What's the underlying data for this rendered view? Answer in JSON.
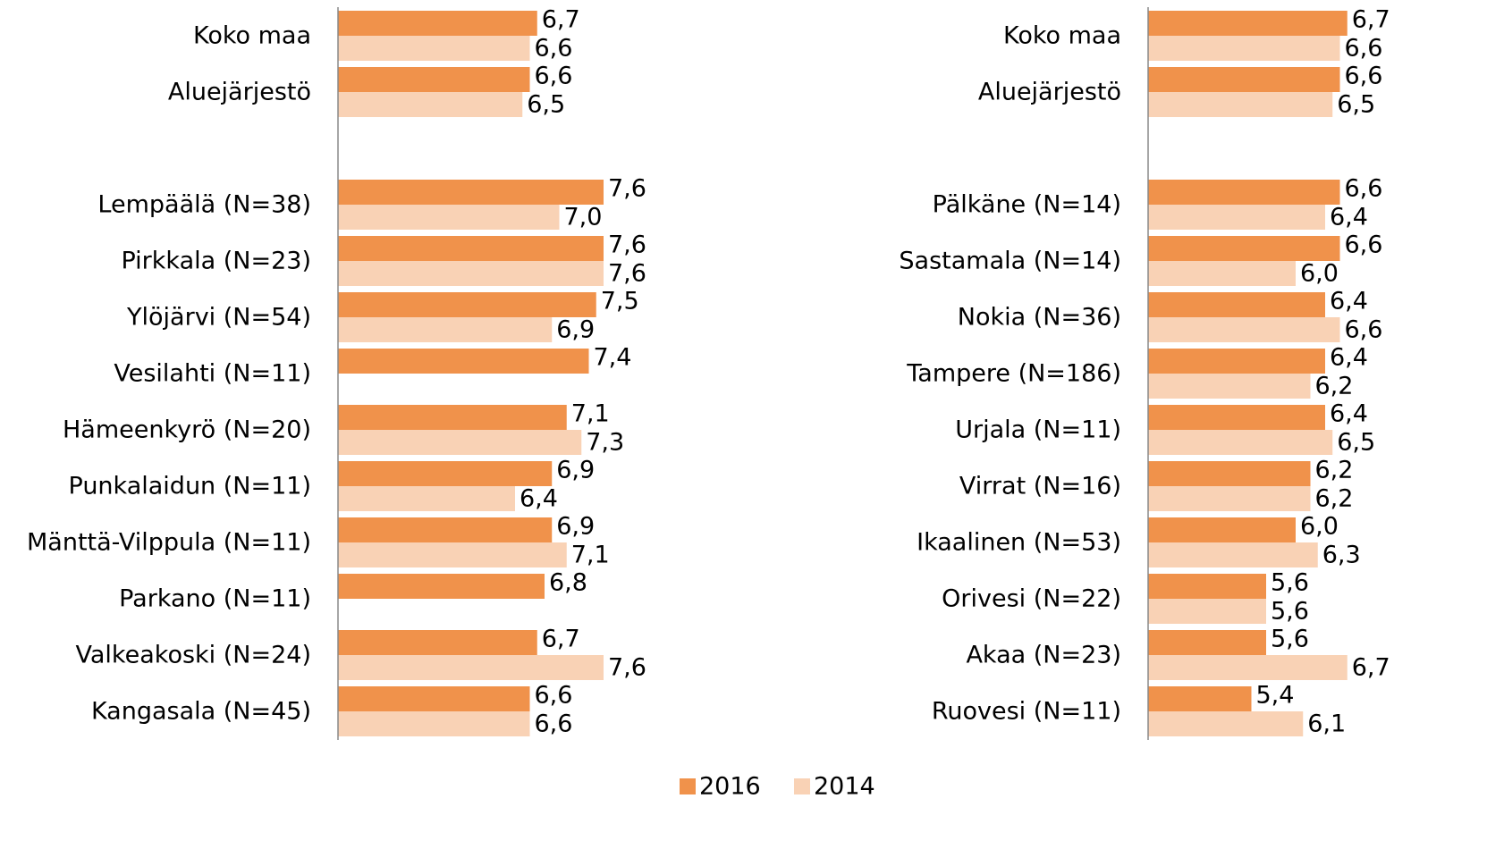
{
  "chart_data": [
    {
      "type": "bar",
      "orientation": "horizontal",
      "categories": [
        "Koko maa",
        "Aluejärjestö",
        null,
        "Lempäälä (N=38)",
        "Pirkkala (N=23)",
        "Ylöjärvi (N=54)",
        "Vesilahti (N=11)",
        "Hämeenkyrö (N=20)",
        "Punkalaidun (N=11)",
        "Mänttä-Vilppula (N=11)",
        "Parkano (N=11)",
        "Valkeakoski (N=24)",
        "Kangasala (N=45)"
      ],
      "series": [
        {
          "name": "2016",
          "color": "#f0924b",
          "values": [
            6.7,
            6.6,
            null,
            7.6,
            7.6,
            7.5,
            7.4,
            7.1,
            6.9,
            6.9,
            6.8,
            6.7,
            6.6
          ],
          "value_labels": [
            "6,7",
            "6,6",
            null,
            "7,6",
            "7,6",
            "7,5",
            "7,4",
            "7,1",
            "6,9",
            "6,9",
            "6,8",
            "6,7",
            "6,6"
          ]
        },
        {
          "name": "2014",
          "color": "#f9d2b5",
          "values": [
            6.6,
            6.5,
            null,
            7.0,
            7.6,
            6.9,
            null,
            7.3,
            6.4,
            7.1,
            null,
            7.6,
            6.6
          ],
          "value_labels": [
            "6,6",
            "6,5",
            null,
            "7,0",
            "7,6",
            "6,9",
            null,
            "7,3",
            "6,4",
            "7,1",
            null,
            "7,6",
            "6,6"
          ]
        }
      ],
      "xlim": [
        4,
        8
      ]
    },
    {
      "type": "bar",
      "orientation": "horizontal",
      "categories": [
        "Koko maa",
        "Aluejärjestö",
        null,
        "Pälkäne (N=14)",
        "Sastamala (N=14)",
        "Nokia (N=36)",
        "Tampere (N=186)",
        "Urjala (N=11)",
        "Virrat (N=16)",
        "Ikaalinen (N=53)",
        "Orivesi (N=22)",
        "Akaa (N=23)",
        "Ruovesi (N=11)"
      ],
      "series": [
        {
          "color": "#f0924b",
          "values": [
            6.7,
            6.6,
            null,
            6.6,
            6.6,
            6.4,
            6.4,
            6.4,
            6.2,
            6.0,
            5.6,
            5.6,
            5.4
          ],
          "value_labels": [
            "6,7",
            "6,6",
            null,
            "6,6",
            "6,6",
            "6,4",
            "6,4",
            "6,4",
            "6,2",
            "6,0",
            "5,6",
            "5,6",
            "5,4"
          ]
        },
        {
          "color": "#f9d2b5",
          "values": [
            6.6,
            6.5,
            null,
            6.4,
            6.0,
            6.6,
            6.2,
            6.5,
            6.2,
            6.3,
            5.6,
            6.7,
            6.1
          ],
          "value_labels": [
            "6,6",
            "6,5",
            null,
            "6,4",
            "6,0",
            "6,6",
            "6,2",
            "6,5",
            "6,2",
            "6,3",
            "5,6",
            "6,7",
            "6,1"
          ]
        }
      ],
      "xlim": [
        4,
        8
      ]
    }
  ]
}
